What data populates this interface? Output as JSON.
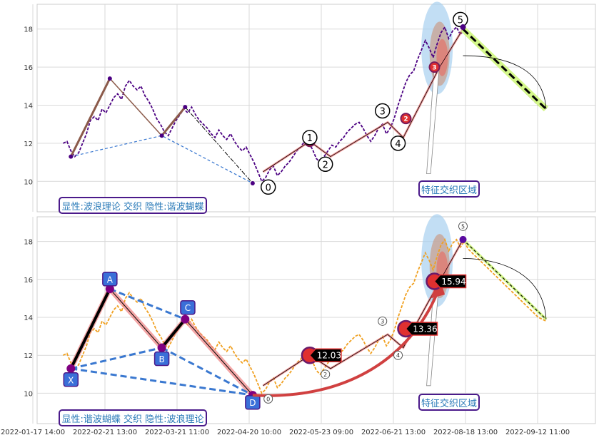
{
  "chart_data": [
    {
      "type": "line",
      "panel": "top",
      "ylim": [
        8.4,
        19.3
      ],
      "yticks": [
        10,
        12,
        14,
        16,
        18
      ],
      "grid": true,
      "series": [
        {
          "name": "",
          "color": "#4b0082",
          "style": "dashed",
          "x": [
            0.0,
            1.5,
            3.0,
            4.5,
            6.0,
            7.5,
            9.0,
            10.5,
            12.0,
            13.5,
            15.0,
            16.5,
            18.0,
            19.5,
            21.0,
            22.5,
            24.0,
            25.5,
            27.0,
            28.5,
            30.0,
            31.5,
            33.0,
            34.5,
            36.0,
            37.5,
            39.0,
            40.5,
            42.0,
            43.5,
            45.0,
            46.5,
            48.0,
            49.5,
            51.0,
            52.5,
            54.0,
            55.5,
            57.0,
            58.5,
            60.0,
            61.5,
            63.0,
            64.5,
            66.0,
            67.5,
            69.0,
            70.5,
            72.0,
            73.5,
            75.0,
            76.5,
            78.0,
            79.5,
            81.0,
            82.5,
            84.0,
            85.5,
            87.0,
            88.5,
            90.0,
            91.5,
            93.0,
            94.5,
            96.0,
            97.5,
            99.0,
            100.5,
            102.0,
            103.5,
            105.0,
            106.5,
            108.0,
            109.5,
            111.0,
            112.5,
            114.0,
            115.5,
            117.0,
            118.5,
            120.0,
            121.5,
            123.0,
            124.5,
            126.0,
            127.5,
            129.0,
            130.5,
            132.0,
            133.5,
            135.0,
            136.5,
            138.0,
            139.5,
            141.0,
            142.5,
            144.0,
            145.5,
            147.0,
            148.5,
            150.0,
            151.5,
            153.0,
            154.5,
            156.0,
            157.5,
            159.0,
            160.5,
            162.0,
            163.5,
            165.0,
            166.5,
            168.0,
            169.5,
            171.0,
            172.5,
            174.0,
            175.5,
            177.0,
            178.5,
            180.0,
            181.5,
            183.0,
            184.5,
            186.0
          ],
          "y": [
            12.0,
            12.1,
            11.6,
            11.3,
            11.5,
            12.0,
            12.5,
            13.2,
            13.4,
            13.2,
            13.8,
            13.6,
            14.0,
            14.4,
            14.6,
            14.3,
            15.0,
            15.3,
            15.0,
            14.8,
            15.0,
            14.5,
            14.2,
            13.8,
            13.3,
            13.0,
            12.6,
            12.4,
            12.8,
            13.2,
            13.5,
            13.8,
            13.6,
            13.9,
            13.5,
            13.2,
            13.0,
            12.8,
            12.5,
            12.3,
            12.7,
            12.4,
            12.2,
            12.5,
            12.1,
            11.8,
            11.6,
            11.8,
            11.4,
            11.0,
            10.5,
            10.0,
            10.2,
            10.6,
            10.8,
            10.3,
            10.5,
            10.8,
            11.0,
            11.3,
            11.6,
            11.8,
            12.1,
            12.0,
            11.7,
            11.2,
            11.0,
            11.3,
            11.6,
            11.9,
            11.8,
            12.1,
            12.3,
            12.6,
            12.8,
            13.0,
            13.1,
            12.8,
            12.4,
            12.1,
            12.4,
            12.8,
            13.0,
            12.5,
            12.8,
            13.3,
            14.0,
            14.6,
            15.2,
            15.6,
            15.8,
            16.4,
            16.9,
            17.4,
            17.0,
            16.5,
            17.2,
            17.8,
            18.1,
            17.5,
            17.9,
            18.1,
            17.7,
            18.0,
            17.6,
            17.4,
            17.2,
            17.0,
            16.8,
            16.6,
            16.4,
            16.2,
            16.0,
            15.8,
            15.6,
            15.4,
            15.2,
            15.0,
            14.8,
            14.6,
            14.4,
            14.2,
            14.0,
            13.9,
            13.8
          ]
        }
      ],
      "pattern_labels": [
        "0",
        "1",
        "2",
        "3",
        "4",
        "5"
      ],
      "zone_label": "特征交织区域",
      "caption": "显性:波浪理论 交织 隐性:谐波蝴蝶"
    },
    {
      "type": "line",
      "panel": "bottom",
      "ylim": [
        8.4,
        19.3
      ],
      "yticks": [
        10,
        12,
        14,
        16,
        18
      ],
      "grid": true,
      "series": [
        {
          "name": "",
          "color": "#f0a020",
          "style": "dashed",
          "x": [
            0.0,
            1.5,
            3.0,
            4.5,
            6.0,
            7.5,
            9.0,
            10.5,
            12.0,
            13.5,
            15.0,
            16.5,
            18.0,
            19.5,
            21.0,
            22.5,
            24.0,
            25.5,
            27.0,
            28.5,
            30.0,
            31.5,
            33.0,
            34.5,
            36.0,
            37.5,
            39.0,
            40.5,
            42.0,
            43.5,
            45.0,
            46.5,
            48.0,
            49.5,
            51.0,
            52.5,
            54.0,
            55.5,
            57.0,
            58.5,
            60.0,
            61.5,
            63.0,
            64.5,
            66.0,
            67.5,
            69.0,
            70.5,
            72.0,
            73.5,
            75.0,
            76.5,
            78.0,
            79.5,
            81.0,
            82.5,
            84.0,
            85.5,
            87.0,
            88.5,
            90.0,
            91.5,
            93.0,
            94.5,
            96.0,
            97.5,
            99.0,
            100.5,
            102.0,
            103.5,
            105.0,
            106.5,
            108.0,
            109.5,
            111.0,
            112.5,
            114.0,
            115.5,
            117.0,
            118.5,
            120.0,
            121.5,
            123.0,
            124.5,
            126.0,
            127.5,
            129.0,
            130.5,
            132.0,
            133.5,
            135.0,
            136.5,
            138.0,
            139.5,
            141.0,
            142.5,
            144.0,
            145.5,
            147.0,
            148.5,
            150.0,
            151.5,
            153.0,
            154.5,
            156.0,
            157.5,
            159.0,
            160.5,
            162.0,
            163.5,
            165.0,
            166.5,
            168.0,
            169.5,
            171.0,
            172.5,
            174.0,
            175.5,
            177.0,
            178.5,
            180.0,
            181.5,
            183.0,
            184.5,
            186.0
          ],
          "y": [
            12.0,
            12.1,
            11.6,
            11.3,
            11.5,
            12.0,
            12.5,
            13.2,
            13.4,
            13.2,
            13.8,
            13.6,
            14.0,
            14.4,
            14.6,
            14.3,
            15.0,
            15.3,
            15.0,
            14.8,
            15.0,
            14.5,
            14.2,
            13.8,
            13.3,
            13.0,
            12.6,
            12.4,
            12.8,
            13.2,
            13.5,
            13.8,
            13.6,
            13.9,
            13.5,
            13.2,
            13.0,
            12.8,
            12.5,
            12.3,
            12.7,
            12.4,
            12.2,
            12.5,
            12.1,
            11.8,
            11.6,
            11.8,
            11.4,
            11.0,
            10.5,
            10.0,
            10.2,
            10.6,
            10.8,
            10.3,
            10.5,
            10.8,
            11.0,
            11.3,
            11.6,
            11.8,
            12.1,
            12.0,
            11.7,
            11.2,
            11.0,
            11.3,
            11.6,
            11.9,
            11.8,
            12.1,
            12.3,
            12.6,
            12.8,
            13.0,
            13.1,
            12.8,
            12.4,
            12.1,
            12.4,
            12.8,
            13.0,
            12.5,
            12.8,
            13.3,
            14.0,
            14.6,
            15.2,
            15.6,
            15.8,
            16.4,
            16.9,
            17.4,
            17.0,
            16.5,
            17.2,
            17.8,
            18.1,
            17.5,
            17.9,
            18.1,
            17.7,
            18.0,
            17.6,
            17.4,
            17.2,
            17.0,
            16.8,
            16.6,
            16.4,
            16.2,
            16.0,
            15.8,
            15.6,
            15.4,
            15.2,
            15.0,
            14.8,
            14.6,
            14.4,
            14.2,
            14.0,
            13.9,
            13.8
          ]
        }
      ],
      "pattern_labels": [
        "X",
        "A",
        "B",
        "C",
        "D"
      ],
      "wave_labels": [
        "0",
        "2",
        "3",
        "4",
        "5"
      ],
      "value_labels": [
        "12.03",
        "13.36",
        "15.94"
      ],
      "zone_label": "特征交织区域",
      "caption": "显性:谐波蝴蝶 交织 隐性:波浪理论"
    }
  ],
  "x_tick_labels": [
    "2022-01-17 14:00",
    "2022-02-21 13:00",
    "2022-03-21 11:00",
    "2022-04-20 10:00",
    "2022-05-23 09:00",
    "2022-06-21 13:00",
    "2022-08-18 13:00",
    "2022-09-12 11:00"
  ],
  "colors": {
    "purple_line": "#4b0082",
    "orange_line": "#f0a020",
    "brown_leg": "#8b5a4a",
    "salmon": "#f08080",
    "blue_dash": "#3a78d0",
    "label_blue": "#3a6fd8",
    "zone_blue": "#a8d0f0",
    "green_target": "#d4f78a"
  }
}
